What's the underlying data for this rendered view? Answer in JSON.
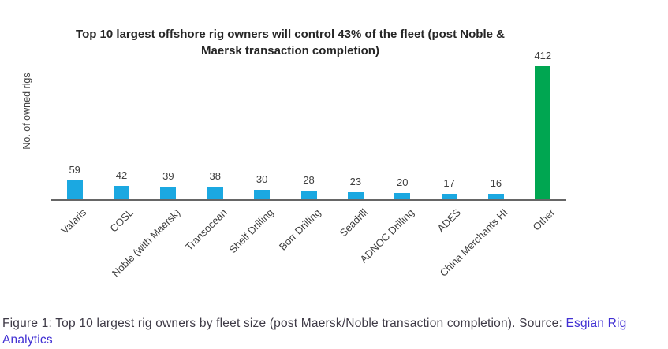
{
  "colors": {
    "bar_blue": "#1ba8e1",
    "bar_green": "#00a651",
    "axis_line": "#666666",
    "chart_text": "#3f3f3f",
    "title_text": "#262626",
    "caption_text": "#3e3a46",
    "link_blue": "#4130d3"
  },
  "chart_data": {
    "type": "bar",
    "title": "Top 10 largest offshore rig owners will control 43% of the fleet (post Noble & Maersk transaction completion)",
    "title_lines": [
      "Top 10 largest offshore rig owners will control 43% of the fleet (post Noble &",
      "Maersk transaction completion)"
    ],
    "xlabel": "",
    "ylabel": "No. of owned rigs",
    "categories": [
      "Valaris",
      "COSL",
      "Noble (with Maersk)",
      "Transocean",
      "Shelf Drilling",
      "Borr Drilling",
      "Seadrill",
      "ADNOC Drilling",
      "ADES",
      "China Merchants HI",
      "Other"
    ],
    "values": [
      59,
      42,
      39,
      38,
      30,
      28,
      23,
      20,
      17,
      16,
      412
    ],
    "bar_colors": [
      "#1ba8e1",
      "#1ba8e1",
      "#1ba8e1",
      "#1ba8e1",
      "#1ba8e1",
      "#1ba8e1",
      "#1ba8e1",
      "#1ba8e1",
      "#1ba8e1",
      "#1ba8e1",
      "#00a651"
    ],
    "data_labels": true,
    "ylim": [
      0,
      430
    ],
    "grid": false,
    "legend_position": "none",
    "x_tick_rotation_deg": 45
  },
  "caption": {
    "prefix": "Figure 1: Top 10 largest rig owners by fleet size (post Maersk/Noble transaction completion). Source: ",
    "link": "Esgian Rig Analytics"
  }
}
